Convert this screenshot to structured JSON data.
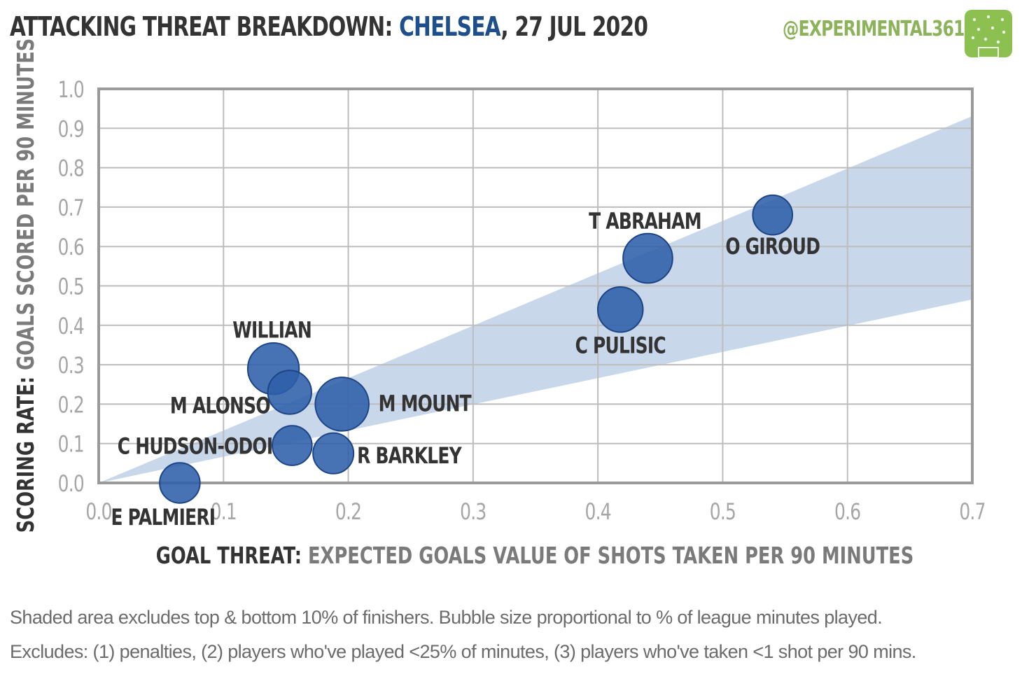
{
  "header": {
    "title_prefix": "ATTACKING THREAT BREAKDOWN:",
    "team": "CHELSEA",
    "date": ", 27 JUL 2020",
    "handle": "@EXPERIMENTAL361",
    "handle_color": "#8cb35a",
    "team_color": "#1f4e8c"
  },
  "logo": {
    "icon": "football-pitch-icon",
    "color": "#8cc152"
  },
  "footnotes": [
    "Shaded area excludes top & bottom  10% of finishers. Bubble size proportional to % of league minutes played.",
    "Excludes: (1) penalties, (2) players who've played <25% of minutes, (3) players who've taken <1 shot per 90 mins."
  ],
  "chart_data": {
    "type": "scatter",
    "xlabel_bold": "GOAL THREAT:",
    "xlabel_rest": "EXPECTED GOALS VALUE OF SHOTS  TAKEN PER 90 MINUTES",
    "ylabel_bold": "SCORING RATE:",
    "ylabel_rest": "GOALS SCORED PER 90 MINUTES",
    "xlim": [
      0,
      0.7
    ],
    "ylim": [
      0,
      1.0
    ],
    "x_ticks": [
      "0.0",
      "0.1",
      "0.2",
      "0.3",
      "0.4",
      "0.5",
      "0.6",
      "0.7"
    ],
    "y_ticks": [
      "0.0",
      "0.1",
      "0.2",
      "0.3",
      "0.4",
      "0.5",
      "0.6",
      "0.7",
      "0.8",
      "0.9",
      "1.0"
    ],
    "grid": true,
    "band": {
      "lower_slope": 0.665,
      "upper_slope": 1.33,
      "color": "#c9d7ea"
    },
    "bubble_color": "#2e5ea8",
    "points": [
      {
        "name": "O GIROUD",
        "x": 0.54,
        "y": 0.68,
        "size": 0.22
      },
      {
        "name": "T ABRAHAM",
        "x": 0.44,
        "y": 0.57,
        "size": 0.62
      },
      {
        "name": "C PULISIC",
        "x": 0.418,
        "y": 0.44,
        "size": 0.42
      },
      {
        "name": "WILLIAN",
        "x": 0.14,
        "y": 0.29,
        "size": 0.72
      },
      {
        "name": "M ALONSO",
        "x": 0.153,
        "y": 0.23,
        "size": 0.36
      },
      {
        "name": "M MOUNT",
        "x": 0.195,
        "y": 0.2,
        "size": 0.85
      },
      {
        "name": "C HUDSON-ODOI",
        "x": 0.155,
        "y": 0.095,
        "size": 0.22
      },
      {
        "name": "R BARKLEY",
        "x": 0.188,
        "y": 0.075,
        "size": 0.25
      },
      {
        "name": "E PALMIERI",
        "x": 0.065,
        "y": 0.0,
        "size": 0.24
      }
    ]
  }
}
